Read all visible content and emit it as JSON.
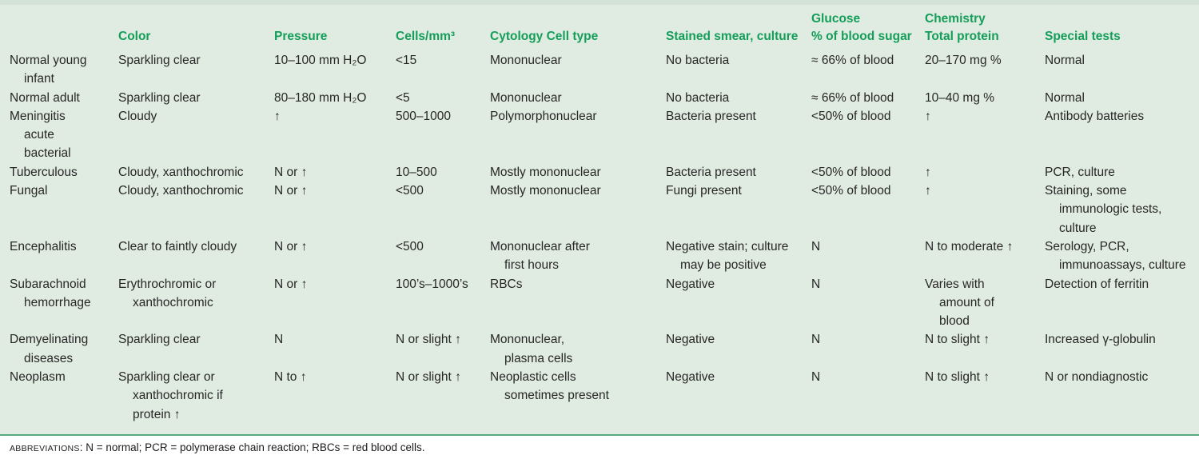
{
  "table": {
    "background_color": "#e0ebe1",
    "top_strip_color": "#d4e3d7",
    "header_text_color": "#149e5a",
    "body_text_color": "#272727",
    "rule_color": "#58a97d",
    "columns": [
      {
        "key": "condition",
        "label": ""
      },
      {
        "key": "color",
        "label": "Color"
      },
      {
        "key": "pressure",
        "label": "Pressure"
      },
      {
        "key": "cells",
        "label": "Cells/mm³"
      },
      {
        "key": "cytology",
        "label": "Cytology Cell type"
      },
      {
        "key": "smear",
        "label": "Stained smear, culture"
      },
      {
        "key": "glucose",
        "label": "Glucose\n% of blood sugar"
      },
      {
        "key": "protein",
        "label": "Chemistry\nTotal protein"
      },
      {
        "key": "special",
        "label": "Special tests"
      }
    ],
    "rows": [
      {
        "cells": [
          "Normal young\ninfant",
          "Sparkling clear",
          "10–100 mm H₂O",
          "<15",
          "Mononuclear",
          "No bacteria",
          "≈ 66% of blood",
          "20–170 mg %",
          "Normal"
        ]
      },
      {
        "cells": [
          "Normal adult",
          "Sparkling clear",
          "80–180 mm H₂O",
          "<5",
          "Mononuclear",
          "No bacteria",
          "≈ 66% of blood",
          "10–40 mg %",
          "Normal"
        ]
      },
      {
        "cells": [
          "Meningitis\nacute\nbacterial",
          "Cloudy",
          "↑",
          "500–1000",
          "Polymorphonuclear",
          "Bacteria present",
          "<50% of blood",
          "↑",
          "Antibody batteries"
        ]
      },
      {
        "cells": [
          "Tuberculous",
          "Cloudy, xanthochromic",
          "N or ↑",
          "10–500",
          "Mostly mononuclear",
          "Bacteria present",
          "<50% of blood",
          "↑",
          "PCR, culture"
        ]
      },
      {
        "cells": [
          "Fungal",
          "Cloudy, xanthochromic",
          "N or ↑",
          "<500",
          "Mostly mononuclear",
          "Fungi present",
          "<50% of blood",
          "↑",
          "Staining, some\nimmunologic tests,\nculture"
        ]
      },
      {
        "cells": [
          "Encephalitis",
          "Clear to faintly cloudy",
          "N or ↑",
          "<500",
          "Mononuclear after\nfirst hours",
          "Negative stain; culture\nmay be positive",
          "N",
          "N to moderate ↑",
          "Serology, PCR,\nimmunoassays, culture"
        ]
      },
      {
        "cells": [
          "Subarachnoid\nhemorrhage",
          "Erythrochromic or\nxanthochromic",
          "N or ↑",
          "100’s–1000’s",
          "RBCs",
          "Negative",
          "N",
          "Varies with\namount of\nblood",
          "Detection of ferritin"
        ]
      },
      {
        "cells": [
          "Demyelinating\ndiseases",
          "Sparkling clear",
          "N",
          "N or slight ↑",
          "Mononuclear,\nplasma cells",
          "Negative",
          "N",
          "N to slight ↑",
          "Increased γ-globulin"
        ]
      },
      {
        "cells": [
          "Neoplasm",
          "Sparkling clear or\nxanthochromic if\nprotein ↑",
          "N to ↑",
          "N or slight ↑",
          "Neoplastic cells\nsometimes present",
          "Negative",
          "N",
          "N to slight ↑",
          "N or nondiagnostic"
        ]
      }
    ]
  },
  "footnote": {
    "label": "ABBREVIATIONS",
    "text": ": N = normal; PCR = polymerase chain reaction; RBCs = red blood cells."
  }
}
